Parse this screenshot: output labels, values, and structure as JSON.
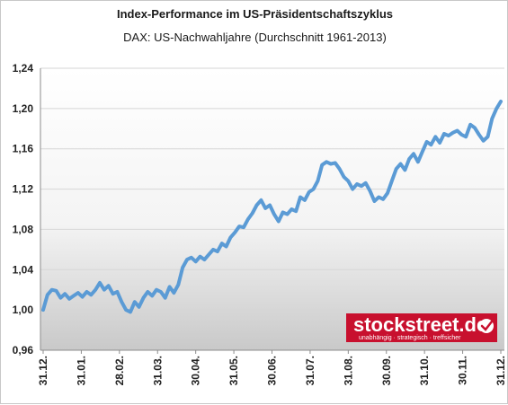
{
  "chart_data": {
    "type": "line",
    "title": "Index-Performance im US-Präsidentschaftszyklus",
    "subtitle": "DAX: US-Nachwahljahre (Durchschnitt 1961-2013)",
    "xlabel": "",
    "ylabel": "",
    "ylim": [
      0.96,
      1.24
    ],
    "y_ticks": [
      "0,96",
      "1,00",
      "1,04",
      "1,08",
      "1,12",
      "1,16",
      "1,20",
      "1,24"
    ],
    "y_tick_values": [
      0.96,
      1.0,
      1.04,
      1.08,
      1.12,
      1.16,
      1.2,
      1.24
    ],
    "x_ticks": [
      "31.12.",
      "31.01.",
      "28.02.",
      "31.03.",
      "30.04.",
      "31.05.",
      "30.06.",
      "31.07.",
      "31.08.",
      "30.09.",
      "31.10.",
      "30.11.",
      "31.12."
    ],
    "grid": "horizontal",
    "line_color": "#5b9bd5",
    "series": [
      {
        "values": [
          1.0,
          1.015,
          1.02,
          1.019,
          1.012,
          1.016,
          1.011,
          1.014,
          1.017,
          1.013,
          1.018,
          1.015,
          1.02,
          1.027,
          1.02,
          1.024,
          1.016,
          1.018,
          1.008,
          1.0,
          0.998,
          1.008,
          1.003,
          1.012,
          1.018,
          1.014,
          1.02,
          1.018,
          1.012,
          1.023,
          1.017,
          1.025,
          1.042,
          1.05,
          1.052,
          1.048,
          1.053,
          1.05,
          1.055,
          1.06,
          1.058,
          1.066,
          1.063,
          1.072,
          1.077,
          1.083,
          1.082,
          1.09,
          1.096,
          1.104,
          1.109,
          1.101,
          1.104,
          1.095,
          1.088,
          1.097,
          1.095,
          1.1,
          1.098,
          1.112,
          1.109,
          1.117,
          1.12,
          1.128,
          1.144,
          1.147,
          1.145,
          1.146,
          1.14,
          1.132,
          1.128,
          1.12,
          1.125,
          1.123,
          1.126,
          1.118,
          1.108,
          1.112,
          1.11,
          1.116,
          1.128,
          1.14,
          1.145,
          1.139,
          1.15,
          1.155,
          1.147,
          1.157,
          1.167,
          1.164,
          1.172,
          1.166,
          1.175,
          1.173,
          1.176,
          1.178,
          1.174,
          1.172,
          1.184,
          1.181,
          1.174,
          1.168,
          1.172,
          1.19,
          1.2,
          1.207
        ]
      }
    ],
    "watermark": {
      "name": "stockstreet.de",
      "slogan": "unabhängig · strategisch · treffsicher"
    }
  }
}
